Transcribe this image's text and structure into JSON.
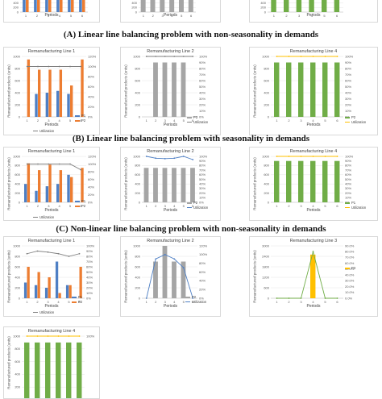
{
  "captions": {
    "a": "(A) Linear line balancing problem with non-seasonality in demands",
    "b": "(B) Linear line balancing problem with seasonality in demands",
    "c": "(C) Non-linear line balancing problem with non-seasonality in demands"
  },
  "colors": {
    "p1": "#4e7fc4",
    "p2": "#ed7d31",
    "gray": "#a5a5a5",
    "green": "#70ad47",
    "yellow": "#ffc000",
    "util": "#7f7f7f"
  },
  "chart_data": [
    {
      "id": "a1",
      "type": "bar",
      "title": "",
      "categories": [
        "1",
        "2",
        "3",
        "4",
        "5",
        "6"
      ],
      "xlabel": "Periods",
      "ylabel": "Remanufactured products",
      "series": [
        {
          "name": "P1",
          "values": [
            800,
            800,
            800,
            800,
            800,
            800
          ]
        },
        {
          "name": "P2",
          "values": [
            900,
            900,
            900,
            900,
            900,
            900
          ]
        }
      ],
      "ylim": [
        0,
        1000
      ]
    },
    {
      "id": "a2",
      "type": "bar",
      "title": "",
      "categories": [
        "1",
        "2",
        "3",
        "4",
        "5",
        "6"
      ],
      "xlabel": "Periods",
      "ylabel": "",
      "series": [
        {
          "name": "P2",
          "values": [
            800,
            800,
            800,
            800,
            800,
            800
          ]
        }
      ],
      "ylim": [
        0,
        1000
      ]
    },
    {
      "id": "a3",
      "type": "bar",
      "title": "",
      "categories": [
        "1",
        "2",
        "3",
        "4",
        "5",
        "6"
      ],
      "xlabel": "Periods",
      "ylabel": "",
      "series": [
        {
          "name": "P1",
          "values": [
            800,
            800,
            800,
            800,
            800,
            800
          ]
        }
      ],
      "ylim": [
        0,
        1000
      ]
    },
    {
      "id": "b1",
      "type": "bar",
      "title": "Remanufacturing Line 1",
      "categories": [
        "1",
        "2",
        "3",
        "4",
        "5",
        "6"
      ],
      "xlabel": "Periods",
      "ylabel": "Remanufactured products (units)",
      "ylim": [
        0,
        1000
      ],
      "series": [
        {
          "name": "P1",
          "values": [
            0,
            380,
            400,
            430,
            380,
            0
          ]
        },
        {
          "name": "P2",
          "values": [
            950,
            780,
            780,
            780,
            520,
            950
          ]
        }
      ],
      "utilization": [
        100,
        100,
        100,
        100,
        100,
        100
      ],
      "y2ticks": [
        "0%",
        "20%",
        "40%",
        "60%",
        "80%",
        "100%",
        "120%"
      ]
    },
    {
      "id": "b2",
      "type": "bar",
      "title": "Remanufacturing Line 2",
      "categories": [
        "1",
        "2",
        "3",
        "4",
        "5",
        "6"
      ],
      "xlabel": "Periods",
      "ylabel": "Remanufactured products (units)",
      "ylim": [
        0,
        1000
      ],
      "series": [
        {
          "name": "P3",
          "values": [
            0,
            900,
            900,
            900,
            900,
            0
          ]
        }
      ],
      "utilization": [
        100,
        100,
        100,
        100,
        100,
        100
      ],
      "y2ticks": [
        "0%",
        "10%",
        "20%",
        "30%",
        "40%",
        "50%",
        "60%",
        "70%",
        "80%",
        "90%",
        "100%"
      ]
    },
    {
      "id": "b3",
      "type": "bar",
      "title": "Remanufacturing Line 4",
      "categories": [
        "1",
        "2",
        "3",
        "4",
        "5",
        "6"
      ],
      "xlabel": "Periods",
      "ylabel": "Remanufactured products (units)",
      "ylim": [
        0,
        1000
      ],
      "series": [
        {
          "name": "P2",
          "values": [
            900,
            900,
            900,
            900,
            900,
            900
          ]
        }
      ],
      "utilization": [
        100,
        100,
        100,
        100,
        100,
        100
      ],
      "y2ticks": [
        "0%",
        "10%",
        "20%",
        "30%",
        "40%",
        "50%",
        "60%",
        "70%",
        "80%",
        "90%",
        "100%"
      ]
    },
    {
      "id": "c1",
      "type": "bar",
      "title": "Remanufacturing Line 1",
      "categories": [
        "1",
        "2",
        "3",
        "4",
        "5",
        "6"
      ],
      "xlabel": "Periods",
      "ylabel": "Remanufactured products (units)",
      "ylim": [
        0,
        1000
      ],
      "series": [
        {
          "name": "P1",
          "values": [
            400,
            250,
            350,
            400,
            600,
            0
          ]
        },
        {
          "name": "P2",
          "values": [
            850,
            700,
            820,
            700,
            550,
            750
          ]
        }
      ],
      "utilization": [
        100,
        100,
        100,
        100,
        100,
        85
      ],
      "y2ticks": [
        "0%",
        "20%",
        "40%",
        "60%",
        "80%",
        "100%",
        "120%"
      ]
    },
    {
      "id": "c2",
      "type": "bar",
      "title": "Remanufacturing Line 2",
      "categories": [
        "1",
        "2",
        "3",
        "4",
        "5",
        "6"
      ],
      "xlabel": "Periods",
      "ylabel": "Remanufactured products (units)",
      "ylim": [
        0,
        1000
      ],
      "series": [
        {
          "name": "P2",
          "values": [
            750,
            750,
            750,
            750,
            750,
            750
          ]
        }
      ],
      "utilization": [
        100,
        96,
        95,
        96,
        100,
        93
      ],
      "y2ticks": [
        "0%",
        "10%",
        "20%",
        "30%",
        "40%",
        "50%",
        "60%",
        "70%",
        "80%",
        "90%",
        "100%"
      ]
    },
    {
      "id": "c3",
      "type": "bar",
      "title": "Remanufacturing Line 4",
      "categories": [
        "1",
        "2",
        "3",
        "4",
        "5",
        "6"
      ],
      "xlabel": "Periods",
      "ylabel": "Remanufactured products (units)",
      "ylim": [
        0,
        1000
      ],
      "series": [
        {
          "name": "P1",
          "values": [
            900,
            900,
            900,
            900,
            900,
            900
          ]
        }
      ],
      "utilization": [
        100,
        100,
        100,
        100,
        100,
        100
      ],
      "y2ticks": [
        "0%",
        "10%",
        "20%",
        "30%",
        "40%",
        "50%",
        "60%",
        "70%",
        "80%",
        "90%",
        "100%"
      ]
    },
    {
      "id": "d1",
      "type": "bar",
      "title": "Remanufacturing Line 1",
      "categories": [
        "1",
        "2",
        "3",
        "4",
        "5",
        "6"
      ],
      "xlabel": "Periods",
      "ylabel": "Remanufactured products (units)",
      "ylim": [
        0,
        1000
      ],
      "series": [
        {
          "name": "P1",
          "values": [
            300,
            250,
            200,
            700,
            250,
            0
          ]
        },
        {
          "name": "P2",
          "values": [
            600,
            500,
            400,
            100,
            250,
            600
          ]
        }
      ],
      "utilization": [
        85,
        90,
        88,
        85,
        80,
        85
      ],
      "y2ticks": [
        "0%",
        "10%",
        "20%",
        "30%",
        "40%",
        "50%",
        "60%",
        "70%",
        "80%",
        "90%",
        "100%"
      ]
    },
    {
      "id": "d2",
      "type": "bar",
      "title": "Remanufacturing Line 2",
      "categories": [
        "1",
        "2",
        "3",
        "4",
        "5",
        "6"
      ],
      "xlabel": "Periods",
      "ylabel": "Remanufactured products (units)",
      "ylim": [
        0,
        1000
      ],
      "series": [
        {
          "name": "P2",
          "values": [
            0,
            700,
            1000,
            700,
            700,
            0
          ]
        }
      ],
      "utilization": [
        0,
        90,
        100,
        90,
        70,
        0
      ],
      "y2ticks": [
        "0%",
        "20%",
        "40%",
        "60%",
        "80%",
        "100%",
        "120%"
      ]
    },
    {
      "id": "d3",
      "type": "bar",
      "title": "Remanufacturing Line 3",
      "categories": [
        "1",
        "2",
        "3",
        "4",
        "5",
        "6"
      ],
      "xlabel": "Periods",
      "ylabel": "Remanufactured products (units)",
      "ylim": [
        0,
        3000
      ],
      "series": [
        {
          "name": "P3",
          "values": [
            0,
            0,
            0,
            2500,
            0,
            0
          ]
        }
      ],
      "utilization": [
        0,
        0,
        0,
        80,
        0,
        0
      ],
      "y2ticks": [
        "0.0%",
        "10.0%",
        "20.0%",
        "30.0%",
        "40.0%",
        "50.0%",
        "60.0%",
        "70.0%",
        "80.0%",
        "90.0%"
      ]
    },
    {
      "id": "d4",
      "type": "bar",
      "title": "Remanufacturing Line 4",
      "categories": [
        "1",
        "2",
        "3",
        "4",
        "5",
        "6"
      ],
      "xlabel": "",
      "ylabel": "Remanufactured products (units)",
      "ylim": [
        0,
        1000
      ],
      "series": [
        {
          "name": "P1",
          "values": [
            900,
            900,
            900,
            900,
            900,
            900
          ]
        }
      ],
      "utilization": [
        100,
        100,
        100,
        100,
        100,
        100
      ],
      "y2ticks": [
        "90%",
        "100%"
      ]
    }
  ],
  "legend": {
    "util": "Utilization"
  }
}
